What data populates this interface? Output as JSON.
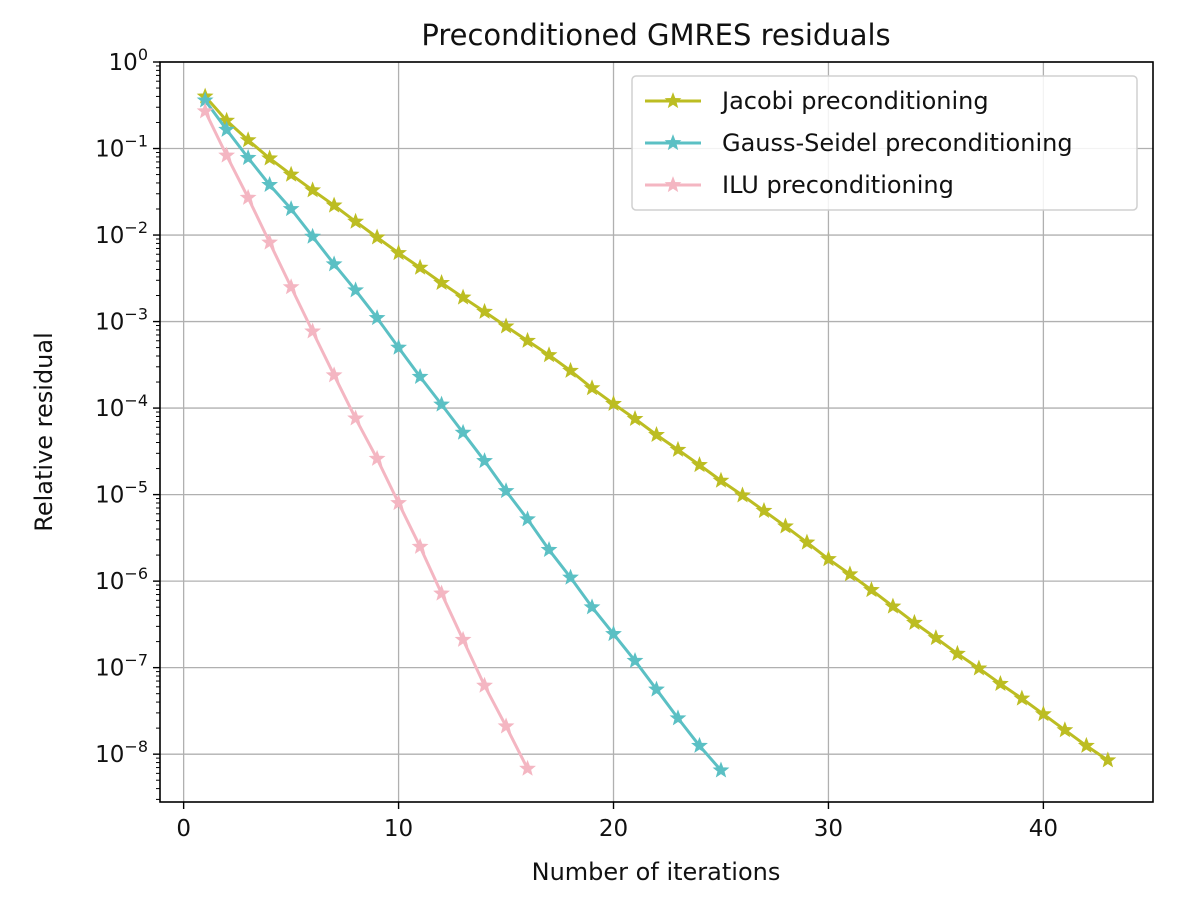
{
  "chart_data": {
    "type": "line",
    "title": "Preconditioned GMRES residuals",
    "xlabel": "Number of iterations",
    "ylabel": "Relative residual",
    "yscale": "log",
    "xlim": [
      -1.1,
      45.1
    ],
    "ylim": [
      2.8e-09,
      1
    ],
    "xticks": [
      0,
      10,
      20,
      30,
      40
    ],
    "xtick_labels": [
      "0",
      "10",
      "20",
      "30",
      "40"
    ],
    "yticks": [
      1.0,
      0.1,
      0.01,
      0.001,
      0.0001,
      1e-05,
      1e-06,
      1e-07,
      1e-08
    ],
    "ytick_labels": [
      {
        "base": "10",
        "exp": "0"
      },
      {
        "base": "10",
        "exp": "−1"
      },
      {
        "base": "10",
        "exp": "−2"
      },
      {
        "base": "10",
        "exp": "−3"
      },
      {
        "base": "10",
        "exp": "−4"
      },
      {
        "base": "10",
        "exp": "−5"
      },
      {
        "base": "10",
        "exp": "−6"
      },
      {
        "base": "10",
        "exp": "−7"
      },
      {
        "base": "10",
        "exp": "−8"
      }
    ],
    "grid": true,
    "legend_position": "top-right",
    "marker": "star",
    "series": [
      {
        "name": "Jacobi preconditioning",
        "color": "#bcbd22",
        "x": [
          1,
          2,
          3,
          4,
          5,
          6,
          7,
          8,
          9,
          10,
          11,
          12,
          13,
          14,
          15,
          16,
          17,
          18,
          19,
          20,
          21,
          22,
          23,
          24,
          25,
          26,
          27,
          28,
          29,
          30,
          31,
          32,
          33,
          34,
          35,
          36,
          37,
          38,
          39,
          40,
          41,
          42,
          43
        ],
        "y": [
          0.4,
          0.21,
          0.125,
          0.077,
          0.05,
          0.033,
          0.022,
          0.0143,
          0.0094,
          0.0062,
          0.0042,
          0.0028,
          0.0019,
          0.0013,
          0.00088,
          0.0006,
          0.00041,
          0.00027,
          0.00017,
          0.000112,
          7.5e-05,
          4.9e-05,
          3.3e-05,
          2.2e-05,
          1.45e-05,
          9.8e-06,
          6.5e-06,
          4.3e-06,
          2.8e-06,
          1.8e-06,
          1.2e-06,
          7.9e-07,
          5.1e-07,
          3.3e-07,
          2.2e-07,
          1.45e-07,
          9.8e-08,
          6.5e-08,
          4.4e-08,
          2.9e-08,
          1.9e-08,
          1.25e-08,
          8.5e-09
        ]
      },
      {
        "name": "Gauss-Seidel preconditioning",
        "color": "#5bc0c4",
        "x": [
          1,
          2,
          3,
          4,
          5,
          6,
          7,
          8,
          9,
          10,
          11,
          12,
          13,
          14,
          15,
          16,
          17,
          18,
          19,
          20,
          21,
          22,
          23,
          24,
          25
        ],
        "y": [
          0.36,
          0.165,
          0.078,
          0.038,
          0.02,
          0.0096,
          0.0046,
          0.0023,
          0.0011,
          0.0005,
          0.00023,
          0.00011,
          5.2e-05,
          2.45e-05,
          1.1e-05,
          5.2e-06,
          2.3e-06,
          1.1e-06,
          5e-07,
          2.45e-07,
          1.2e-07,
          5.6e-08,
          2.6e-08,
          1.25e-08,
          6.5e-09
        ]
      },
      {
        "name": "ILU preconditioning",
        "color": "#f4b6c2",
        "x": [
          1,
          2,
          3,
          4,
          5,
          6,
          7,
          8,
          9,
          10,
          11,
          12,
          13,
          14,
          15,
          16
        ],
        "y": [
          0.27,
          0.083,
          0.027,
          0.0082,
          0.0025,
          0.00077,
          0.00024,
          7.6e-05,
          2.6e-05,
          8e-06,
          2.5e-06,
          7.2e-07,
          2.1e-07,
          6.2e-08,
          2.1e-08,
          6.8e-09
        ]
      }
    ]
  }
}
